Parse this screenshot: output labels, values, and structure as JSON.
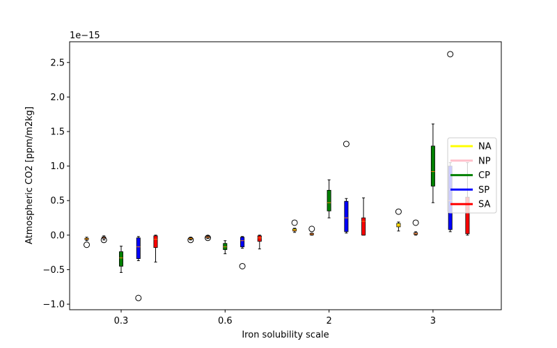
{
  "chart_data": {
    "type": "boxplot",
    "title": "",
    "xlabel": "Iron solubility scale",
    "ylabel": "Atmospheric CO2 [ppm/m2kg]",
    "offset_text": "1e−15",
    "multiplier": 1e-15,
    "categories": [
      "0.3",
      "0.6",
      "2",
      "3"
    ],
    "ylim": [
      -1.08,
      2.8
    ],
    "yticks": [
      -1.0,
      -0.5,
      0.0,
      0.5,
      1.0,
      1.5,
      2.0,
      2.5
    ],
    "ytick_labels": [
      "−1.0",
      "−0.5",
      "0.0",
      "0.5",
      "1.0",
      "1.5",
      "2.0",
      "2.5"
    ],
    "legend_position": "center-right",
    "median_color": "#ff7f0e",
    "series": [
      {
        "name": "NA",
        "color": "#ffff00",
        "boxes": [
          {
            "whislo": -0.08,
            "q1": -0.065,
            "med": -0.055,
            "q3": -0.045,
            "whishi": -0.03,
            "fliers": [
              -0.14
            ]
          },
          {
            "whislo": -0.07,
            "q1": -0.06,
            "med": -0.05,
            "q3": -0.04,
            "whishi": -0.03,
            "fliers": [
              -0.07
            ]
          },
          {
            "whislo": 0.04,
            "q1": 0.06,
            "med": 0.07,
            "q3": 0.09,
            "whishi": 0.1,
            "fliers": [
              0.18
            ]
          },
          {
            "whislo": 0.06,
            "q1": 0.12,
            "med": 0.14,
            "q3": 0.17,
            "whishi": 0.19,
            "fliers": [
              0.34
            ]
          }
        ]
      },
      {
        "name": "NP",
        "color": "#ffc0cb",
        "boxes": [
          {
            "whislo": -0.07,
            "q1": -0.05,
            "med": -0.035,
            "q3": -0.025,
            "whishi": -0.01,
            "fliers": [
              -0.07
            ]
          },
          {
            "whislo": -0.05,
            "q1": -0.04,
            "med": -0.03,
            "q3": -0.02,
            "whishi": -0.01,
            "fliers": [
              -0.04
            ]
          },
          {
            "whislo": 0.0,
            "q1": 0.005,
            "med": 0.015,
            "q3": 0.025,
            "whishi": 0.03,
            "fliers": [
              0.09
            ]
          },
          {
            "whislo": 0.0,
            "q1": 0.01,
            "med": 0.02,
            "q3": 0.035,
            "whishi": 0.05,
            "fliers": [
              0.18
            ]
          }
        ]
      },
      {
        "name": "CP",
        "color": "#008000",
        "boxes": [
          {
            "whislo": -0.54,
            "q1": -0.45,
            "med": -0.33,
            "q3": -0.24,
            "whishi": -0.16,
            "fliers": []
          },
          {
            "whislo": -0.27,
            "q1": -0.21,
            "med": -0.17,
            "q3": -0.12,
            "whishi": -0.08,
            "fliers": []
          },
          {
            "whislo": 0.25,
            "q1": 0.35,
            "med": 0.47,
            "q3": 0.65,
            "whishi": 0.8,
            "fliers": []
          },
          {
            "whislo": 0.47,
            "q1": 0.71,
            "med": 0.92,
            "q3": 1.29,
            "whishi": 1.61,
            "fliers": []
          }
        ]
      },
      {
        "name": "SP",
        "color": "#0000ff",
        "boxes": [
          {
            "whislo": -0.37,
            "q1": -0.34,
            "med": -0.17,
            "q3": -0.04,
            "whishi": -0.02,
            "fliers": [
              -0.91
            ]
          },
          {
            "whislo": -0.19,
            "q1": -0.17,
            "med": -0.08,
            "q3": -0.03,
            "whishi": -0.02,
            "fliers": [
              -0.45
            ]
          },
          {
            "whislo": 0.03,
            "q1": 0.05,
            "med": 0.25,
            "q3": 0.49,
            "whishi": 0.53,
            "fliers": [
              1.32
            ]
          },
          {
            "whislo": 0.05,
            "q1": 0.08,
            "med": 0.5,
            "q3": 1.0,
            "whishi": 1.05,
            "fliers": [
              2.62
            ]
          }
        ]
      },
      {
        "name": "SA",
        "color": "#ff0000",
        "boxes": [
          {
            "whislo": -0.39,
            "q1": -0.18,
            "med": -0.06,
            "q3": -0.01,
            "whishi": 0.0,
            "fliers": []
          },
          {
            "whislo": -0.2,
            "q1": -0.09,
            "med": -0.04,
            "q3": -0.01,
            "whishi": 0.0,
            "fliers": []
          },
          {
            "whislo": 0.0,
            "q1": 0.0,
            "med": 0.2,
            "q3": 0.25,
            "whishi": 0.54,
            "fliers": []
          },
          {
            "whislo": 0.0,
            "q1": 0.02,
            "med": 0.35,
            "q3": 0.55,
            "whishi": 1.05,
            "fliers": []
          }
        ]
      }
    ]
  }
}
